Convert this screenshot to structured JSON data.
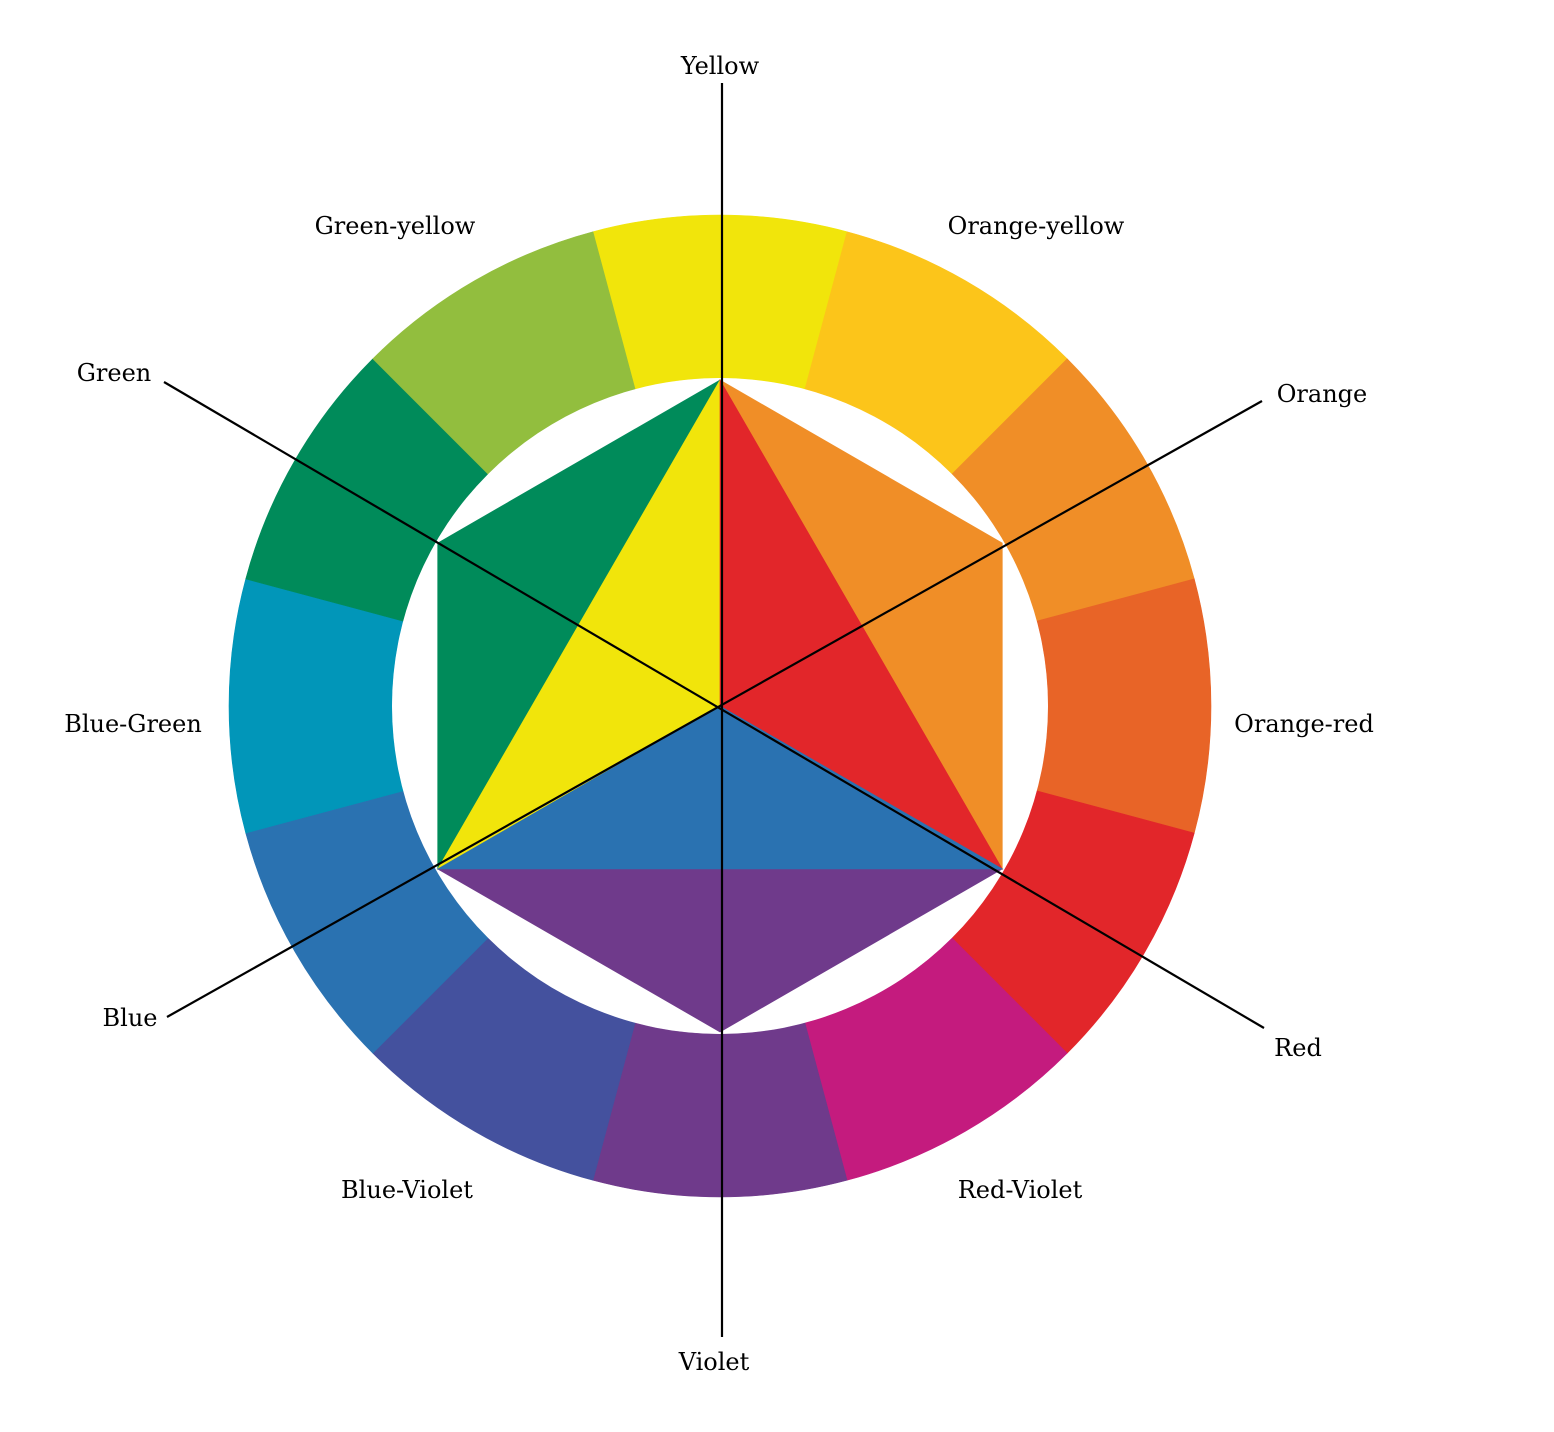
{
  "segments": [
    {
      "label": "Yellow",
      "color": "#F1E50B"
    },
    {
      "label": "Orange-yellow",
      "color": "#FCC51A"
    },
    {
      "label": "Orange",
      "color": "#F08E27"
    },
    {
      "label": "Orange-red",
      "color": "#E86427"
    },
    {
      "label": "Red",
      "color": "#E2262A"
    },
    {
      "label": "Red-Violet",
      "color": "#C41B7E"
    },
    {
      "label": "Violet",
      "color": "#6F3A8B"
    },
    {
      "label": "Blue-Violet",
      "color": "#44519E"
    },
    {
      "label": "Blue",
      "color": "#2A72B1"
    },
    {
      "label": "Blue-Green",
      "color": "#0196B9"
    },
    {
      "label": "Green",
      "color": "#008B5A"
    },
    {
      "label": "Green-yellow",
      "color": "#92BE3E"
    }
  ],
  "center": {
    "primary_triangle": [
      {
        "label": "Yellow",
        "color": "#F1E50B"
      },
      {
        "label": "Red",
        "color": "#E2262A"
      },
      {
        "label": "Blue",
        "color": "#2A72B1"
      }
    ],
    "secondary_triangles": [
      {
        "label": "Orange",
        "color": "#F08E27"
      },
      {
        "label": "Violet",
        "color": "#6F3A8B"
      },
      {
        "label": "Green",
        "color": "#008B5A"
      }
    ]
  }
}
